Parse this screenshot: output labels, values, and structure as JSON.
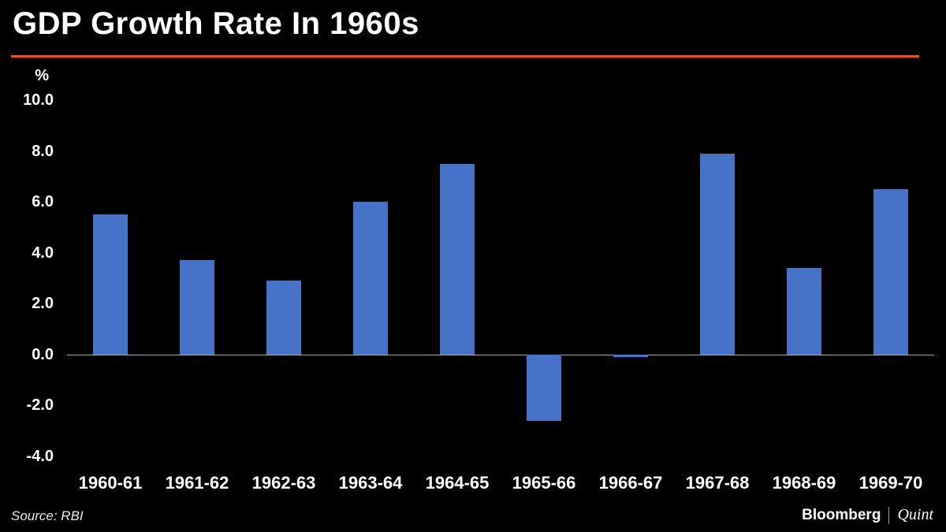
{
  "title": "GDP Growth Rate In 1960s",
  "accent_color": "#e8501e",
  "bar_color": "#4673c8",
  "source": "Source: RBI",
  "brand": {
    "name1": "Bloomberg",
    "name2": "Quint"
  },
  "chart_data": {
    "type": "bar",
    "title": "GDP Growth Rate In 1960s",
    "unit_label": "%",
    "categories": [
      "1960-61",
      "1961-62",
      "1962-63",
      "1963-64",
      "1964-65",
      "1965-66",
      "1966-67",
      "1967-68",
      "1968-69",
      "1969-70"
    ],
    "values": [
      5.5,
      3.7,
      2.9,
      6.0,
      7.5,
      -2.6,
      -0.1,
      7.9,
      3.4,
      6.5
    ],
    "yticks": [
      10.0,
      8.0,
      6.0,
      4.0,
      2.0,
      0.0,
      -2.0,
      -4.0
    ],
    "ylim": [
      -4.5,
      11.0
    ],
    "grid": false,
    "legend": "none",
    "xlabel": "",
    "ylabel": "%"
  }
}
